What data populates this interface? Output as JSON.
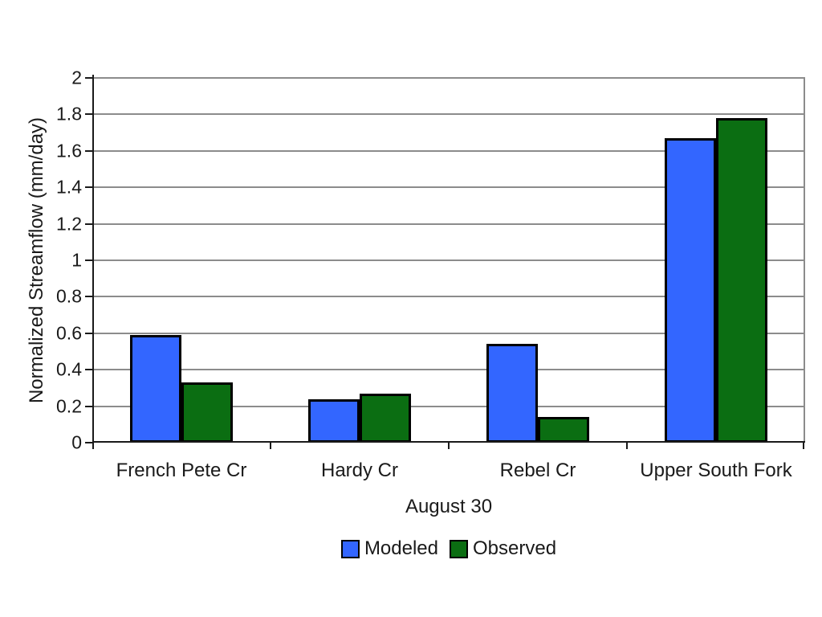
{
  "chart_data": {
    "type": "bar",
    "title": "",
    "categories": [
      "French Pete Cr",
      "Hardy Cr",
      "Rebel Cr",
      "Upper South Fork"
    ],
    "series": [
      {
        "name": "Modeled",
        "color": "#3366FF",
        "values": [
          0.59,
          0.24,
          0.54,
          1.67
        ]
      },
      {
        "name": "Observed",
        "color": "#0B6E12",
        "values": [
          0.33,
          0.27,
          0.14,
          1.78
        ]
      }
    ],
    "xlabel": "August 30",
    "ylabel": "Normalized Streamflow (mm/day)",
    "ylim": [
      0,
      2
    ],
    "ytick_step": 0.2,
    "ytick_labels": [
      "0",
      "0.2",
      "0.4",
      "0.6",
      "0.8",
      "1",
      "1.2",
      "1.4",
      "1.6",
      "1.8",
      "2"
    ],
    "grid": true,
    "gridline_color": "#8c8c8c",
    "axis_color": "#1a1a1a",
    "bar_border_color": "#000000",
    "legend_position": "bottom-center",
    "background": "#FFFFFF"
  }
}
